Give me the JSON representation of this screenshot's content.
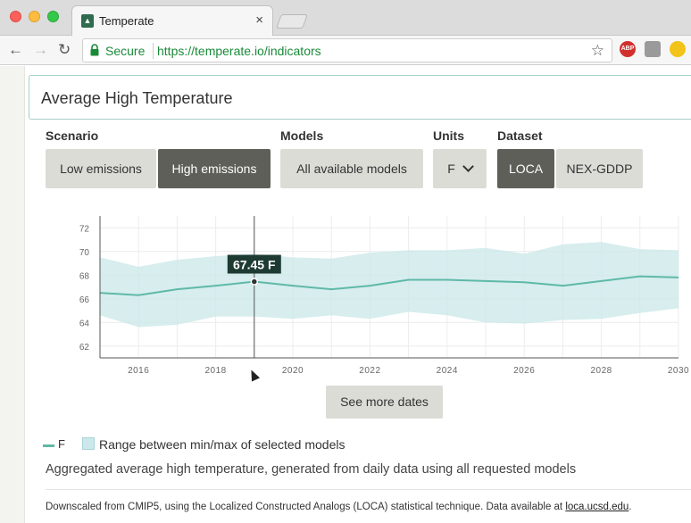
{
  "browser": {
    "tab_title": "Temperate",
    "secure_label": "Secure",
    "url": "https://temperate.io/indicators",
    "ext_abp": "ABP"
  },
  "page": {
    "title": "Average High Temperature",
    "scenario": {
      "label": "Scenario",
      "options": [
        "Low emissions",
        "High emissions"
      ],
      "selected": "High emissions"
    },
    "models": {
      "label": "Models",
      "value": "All available models"
    },
    "units": {
      "label": "Units",
      "value": "F"
    },
    "dataset": {
      "label": "Dataset",
      "options": [
        "LOCA",
        "NEX-GDDP"
      ],
      "selected": "LOCA"
    },
    "see_more": "See more dates",
    "legend": {
      "series": "F",
      "range": "Range between min/max of selected models"
    },
    "description": "Aggregated average high temperature, generated from daily data using all requested models",
    "source_prefix": "Downscaled from CMIP5, using the Localized Constructed Analogs (LOCA) statistical technique. Data available at ",
    "source_link": "loca.ucsd.edu",
    "source_suffix": "."
  },
  "chart_data": {
    "type": "area",
    "x_ticks": [
      "2016",
      "2018",
      "2020",
      "2022",
      "2024",
      "2026",
      "2028",
      "2030"
    ],
    "y_ticks": [
      "62",
      "64",
      "66",
      "68",
      "70",
      "72"
    ],
    "xlim": [
      2015,
      2030
    ],
    "ylim": [
      61,
      73
    ],
    "grid": true,
    "series": [
      {
        "x": [
          2015,
          2016,
          2017,
          2018,
          2019,
          2020,
          2021,
          2022,
          2023,
          2024,
          2025,
          2026,
          2027,
          2028,
          2029,
          2030
        ],
        "values": [
          66.5,
          66.3,
          66.8,
          67.1,
          67.45,
          67.1,
          66.8,
          67.1,
          67.6,
          67.6,
          67.5,
          67.4,
          67.1,
          67.5,
          67.9,
          67.8
        ]
      }
    ],
    "band": {
      "x": [
        2015,
        2016,
        2017,
        2018,
        2019,
        2020,
        2021,
        2022,
        2023,
        2024,
        2025,
        2026,
        2027,
        2028,
        2029,
        2030
      ],
      "max": [
        69.5,
        68.7,
        69.3,
        69.6,
        69.8,
        69.5,
        69.4,
        69.9,
        70.1,
        70.1,
        70.3,
        69.8,
        70.6,
        70.8,
        70.2,
        70.1
      ],
      "min": [
        64.6,
        63.6,
        63.8,
        64.5,
        64.5,
        64.3,
        64.6,
        64.3,
        64.9,
        64.6,
        64.0,
        63.9,
        64.2,
        64.3,
        64.8,
        65.2
      ]
    },
    "hover": {
      "x": 2019,
      "label": "67.45 F"
    },
    "colors": {
      "line": "#5fb9a7",
      "band": "#cde8ea",
      "grid": "#ececec",
      "marker": "#333333"
    }
  }
}
